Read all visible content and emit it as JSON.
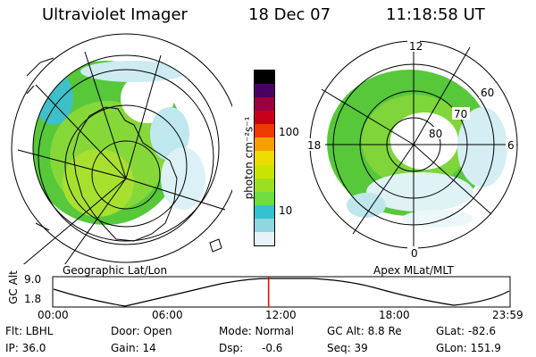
{
  "header": {
    "instrument": "Ultraviolet Imager",
    "date": "18 Dec 07",
    "time": "11:18:58 UT"
  },
  "left_panel": {
    "caption": "Geographic Lat/Lon"
  },
  "right_panel": {
    "caption": "Apex MLat/MLT",
    "mlt_labels": [
      "12",
      "18",
      "6",
      "0"
    ],
    "mlat_labels": [
      "60",
      "70",
      "80"
    ]
  },
  "colorbar": {
    "label": "photon cm⁻²s⁻¹",
    "ticks": [
      "100",
      "10"
    ],
    "scale": "log",
    "colors": [
      "#e6f2f6",
      "#8fd6e0",
      "#35c2d0",
      "#6fdc40",
      "#9be020",
      "#c8e400",
      "#ecdc00",
      "#f5a000",
      "#ee3a00",
      "#c8001a",
      "#9a0040",
      "#4a0060",
      "#000000"
    ]
  },
  "timeline": {
    "ylabel": "GC Alt",
    "yticks": [
      "9.0",
      "1.8"
    ],
    "xticks": [
      "00:00",
      "06:00",
      "12:00",
      "18:00",
      "23:59"
    ],
    "current_time_fraction": 0.472,
    "marker_color": "#ff0000"
  },
  "info": {
    "flt": "Flt: LBHL",
    "ip": "IP: 36.0",
    "door": "Door: Open",
    "gain": "Gain: 14",
    "mode": "Mode: Normal",
    "dsp_label": "Dsp:",
    "dsp_value": "-0.6",
    "gcalt": "GC Alt: 8.8 Re",
    "seq": "Seq: 39",
    "glat": "GLat: -82.6",
    "glon": "GLon: 151.9"
  }
}
